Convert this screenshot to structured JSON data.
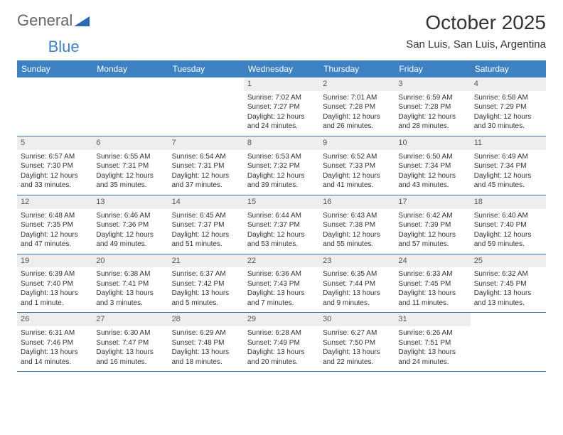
{
  "brand": {
    "part1": "General",
    "part2": "Blue"
  },
  "month_title": "October 2025",
  "location": "San Luis, San Luis, Argentina",
  "colors": {
    "header_bg": "#3d81c2",
    "header_text": "#ffffff",
    "daynum_bg": "#eeeeee",
    "week_divider": "#3d6ea0",
    "body_text": "#333333",
    "brand_gray": "#666666",
    "brand_blue": "#3d81c2"
  },
  "day_names": [
    "Sunday",
    "Monday",
    "Tuesday",
    "Wednesday",
    "Thursday",
    "Friday",
    "Saturday"
  ],
  "weeks": [
    [
      {
        "empty": true
      },
      {
        "empty": true
      },
      {
        "empty": true
      },
      {
        "day": "1",
        "sunrise": "Sunrise: 7:02 AM",
        "sunset": "Sunset: 7:27 PM",
        "daylight1": "Daylight: 12 hours",
        "daylight2": "and 24 minutes."
      },
      {
        "day": "2",
        "sunrise": "Sunrise: 7:01 AM",
        "sunset": "Sunset: 7:28 PM",
        "daylight1": "Daylight: 12 hours",
        "daylight2": "and 26 minutes."
      },
      {
        "day": "3",
        "sunrise": "Sunrise: 6:59 AM",
        "sunset": "Sunset: 7:28 PM",
        "daylight1": "Daylight: 12 hours",
        "daylight2": "and 28 minutes."
      },
      {
        "day": "4",
        "sunrise": "Sunrise: 6:58 AM",
        "sunset": "Sunset: 7:29 PM",
        "daylight1": "Daylight: 12 hours",
        "daylight2": "and 30 minutes."
      }
    ],
    [
      {
        "day": "5",
        "sunrise": "Sunrise: 6:57 AM",
        "sunset": "Sunset: 7:30 PM",
        "daylight1": "Daylight: 12 hours",
        "daylight2": "and 33 minutes."
      },
      {
        "day": "6",
        "sunrise": "Sunrise: 6:55 AM",
        "sunset": "Sunset: 7:31 PM",
        "daylight1": "Daylight: 12 hours",
        "daylight2": "and 35 minutes."
      },
      {
        "day": "7",
        "sunrise": "Sunrise: 6:54 AM",
        "sunset": "Sunset: 7:31 PM",
        "daylight1": "Daylight: 12 hours",
        "daylight2": "and 37 minutes."
      },
      {
        "day": "8",
        "sunrise": "Sunrise: 6:53 AM",
        "sunset": "Sunset: 7:32 PM",
        "daylight1": "Daylight: 12 hours",
        "daylight2": "and 39 minutes."
      },
      {
        "day": "9",
        "sunrise": "Sunrise: 6:52 AM",
        "sunset": "Sunset: 7:33 PM",
        "daylight1": "Daylight: 12 hours",
        "daylight2": "and 41 minutes."
      },
      {
        "day": "10",
        "sunrise": "Sunrise: 6:50 AM",
        "sunset": "Sunset: 7:34 PM",
        "daylight1": "Daylight: 12 hours",
        "daylight2": "and 43 minutes."
      },
      {
        "day": "11",
        "sunrise": "Sunrise: 6:49 AM",
        "sunset": "Sunset: 7:34 PM",
        "daylight1": "Daylight: 12 hours",
        "daylight2": "and 45 minutes."
      }
    ],
    [
      {
        "day": "12",
        "sunrise": "Sunrise: 6:48 AM",
        "sunset": "Sunset: 7:35 PM",
        "daylight1": "Daylight: 12 hours",
        "daylight2": "and 47 minutes."
      },
      {
        "day": "13",
        "sunrise": "Sunrise: 6:46 AM",
        "sunset": "Sunset: 7:36 PM",
        "daylight1": "Daylight: 12 hours",
        "daylight2": "and 49 minutes."
      },
      {
        "day": "14",
        "sunrise": "Sunrise: 6:45 AM",
        "sunset": "Sunset: 7:37 PM",
        "daylight1": "Daylight: 12 hours",
        "daylight2": "and 51 minutes."
      },
      {
        "day": "15",
        "sunrise": "Sunrise: 6:44 AM",
        "sunset": "Sunset: 7:37 PM",
        "daylight1": "Daylight: 12 hours",
        "daylight2": "and 53 minutes."
      },
      {
        "day": "16",
        "sunrise": "Sunrise: 6:43 AM",
        "sunset": "Sunset: 7:38 PM",
        "daylight1": "Daylight: 12 hours",
        "daylight2": "and 55 minutes."
      },
      {
        "day": "17",
        "sunrise": "Sunrise: 6:42 AM",
        "sunset": "Sunset: 7:39 PM",
        "daylight1": "Daylight: 12 hours",
        "daylight2": "and 57 minutes."
      },
      {
        "day": "18",
        "sunrise": "Sunrise: 6:40 AM",
        "sunset": "Sunset: 7:40 PM",
        "daylight1": "Daylight: 12 hours",
        "daylight2": "and 59 minutes."
      }
    ],
    [
      {
        "day": "19",
        "sunrise": "Sunrise: 6:39 AM",
        "sunset": "Sunset: 7:40 PM",
        "daylight1": "Daylight: 13 hours",
        "daylight2": "and 1 minute."
      },
      {
        "day": "20",
        "sunrise": "Sunrise: 6:38 AM",
        "sunset": "Sunset: 7:41 PM",
        "daylight1": "Daylight: 13 hours",
        "daylight2": "and 3 minutes."
      },
      {
        "day": "21",
        "sunrise": "Sunrise: 6:37 AM",
        "sunset": "Sunset: 7:42 PM",
        "daylight1": "Daylight: 13 hours",
        "daylight2": "and 5 minutes."
      },
      {
        "day": "22",
        "sunrise": "Sunrise: 6:36 AM",
        "sunset": "Sunset: 7:43 PM",
        "daylight1": "Daylight: 13 hours",
        "daylight2": "and 7 minutes."
      },
      {
        "day": "23",
        "sunrise": "Sunrise: 6:35 AM",
        "sunset": "Sunset: 7:44 PM",
        "daylight1": "Daylight: 13 hours",
        "daylight2": "and 9 minutes."
      },
      {
        "day": "24",
        "sunrise": "Sunrise: 6:33 AM",
        "sunset": "Sunset: 7:45 PM",
        "daylight1": "Daylight: 13 hours",
        "daylight2": "and 11 minutes."
      },
      {
        "day": "25",
        "sunrise": "Sunrise: 6:32 AM",
        "sunset": "Sunset: 7:45 PM",
        "daylight1": "Daylight: 13 hours",
        "daylight2": "and 13 minutes."
      }
    ],
    [
      {
        "day": "26",
        "sunrise": "Sunrise: 6:31 AM",
        "sunset": "Sunset: 7:46 PM",
        "daylight1": "Daylight: 13 hours",
        "daylight2": "and 14 minutes."
      },
      {
        "day": "27",
        "sunrise": "Sunrise: 6:30 AM",
        "sunset": "Sunset: 7:47 PM",
        "daylight1": "Daylight: 13 hours",
        "daylight2": "and 16 minutes."
      },
      {
        "day": "28",
        "sunrise": "Sunrise: 6:29 AM",
        "sunset": "Sunset: 7:48 PM",
        "daylight1": "Daylight: 13 hours",
        "daylight2": "and 18 minutes."
      },
      {
        "day": "29",
        "sunrise": "Sunrise: 6:28 AM",
        "sunset": "Sunset: 7:49 PM",
        "daylight1": "Daylight: 13 hours",
        "daylight2": "and 20 minutes."
      },
      {
        "day": "30",
        "sunrise": "Sunrise: 6:27 AM",
        "sunset": "Sunset: 7:50 PM",
        "daylight1": "Daylight: 13 hours",
        "daylight2": "and 22 minutes."
      },
      {
        "day": "31",
        "sunrise": "Sunrise: 6:26 AM",
        "sunset": "Sunset: 7:51 PM",
        "daylight1": "Daylight: 13 hours",
        "daylight2": "and 24 minutes."
      },
      {
        "empty": true
      }
    ]
  ]
}
